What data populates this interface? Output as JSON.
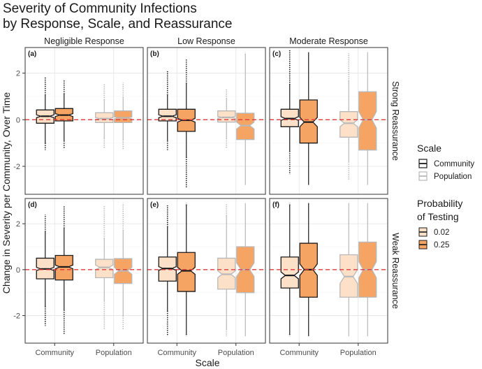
{
  "chart_data": {
    "type": "boxplot",
    "title": "Severity of Community Infections",
    "subtitle": "by Response, Scale, and Reassurance",
    "xlabel": "Scale",
    "ylabel": "Change in Severity per Community, Over Time",
    "categories": [
      "Community",
      "Population"
    ],
    "yticks": [
      "-2",
      "0",
      "2"
    ],
    "ylim": [
      -3.2,
      3.1
    ],
    "reference_line": 0,
    "column_facets": [
      "Negligible Response",
      "Low Response",
      "Moderate Response"
    ],
    "row_facets": [
      "Strong Reassurance",
      "Weak Reassurance"
    ],
    "legend": {
      "scale_title": "Scale",
      "scale_items": [
        {
          "label": "Community",
          "color": "#1a1a1a"
        },
        {
          "label": "Population",
          "color": "#b8b8b8"
        }
      ],
      "prob_title_line1": "Probability",
      "prob_title_line2": "of Testing",
      "prob_items": [
        {
          "label": "0.02",
          "color": "#fde0c8"
        },
        {
          "label": "0.25",
          "color": "#f6a464"
        }
      ]
    },
    "panels": [
      {
        "label": "(a)",
        "boxes": [
          {
            "scale": "Community",
            "prob": "0.02",
            "q1": -0.15,
            "median": 0.15,
            "q3": 0.42,
            "notch": 0.06,
            "wlo": -1.0,
            "whi": 1.05,
            "olo": -1.3,
            "ohi": 1.85
          },
          {
            "scale": "Community",
            "prob": "0.25",
            "q1": -0.05,
            "median": 0.2,
            "q3": 0.48,
            "notch": 0.06,
            "wlo": -0.9,
            "whi": 1.1,
            "olo": -1.25,
            "ohi": 1.7
          },
          {
            "scale": "Population",
            "prob": "0.02",
            "q1": -0.12,
            "median": 0.05,
            "q3": 0.3,
            "notch": 0.04,
            "wlo": -0.8,
            "whi": 0.85,
            "olo": -1.25,
            "ohi": 1.55
          },
          {
            "scale": "Population",
            "prob": "0.25",
            "q1": -0.12,
            "median": 0.08,
            "q3": 0.38,
            "notch": 0.04,
            "wlo": -0.85,
            "whi": 0.95,
            "olo": -1.3,
            "ohi": 1.6
          }
        ]
      },
      {
        "label": "(b)",
        "boxes": [
          {
            "scale": "Community",
            "prob": "0.02",
            "q1": -0.05,
            "median": 0.15,
            "q3": 0.45,
            "notch": 0.06,
            "wlo": -0.9,
            "whi": 1.05,
            "olo": -1.3,
            "ohi": 2.1
          },
          {
            "scale": "Community",
            "prob": "0.25",
            "q1": -0.5,
            "median": -0.02,
            "q3": 0.45,
            "notch": 0.08,
            "wlo": -1.6,
            "whi": 1.55,
            "olo": -2.9,
            "ohi": 2.6
          },
          {
            "scale": "Population",
            "prob": "0.02",
            "q1": -0.1,
            "median": 0.1,
            "q3": 0.38,
            "notch": 0.04,
            "wlo": -0.8,
            "whi": 0.9,
            "olo": -1.2,
            "ohi": 1.3
          },
          {
            "scale": "Population",
            "prob": "0.25",
            "q1": -0.85,
            "median": -0.25,
            "q3": 0.28,
            "notch": 0.15,
            "wlo": -2.8,
            "whi": 2.8,
            "olo": -2.8,
            "ohi": 2.9
          }
        ]
      },
      {
        "label": "(c)",
        "boxes": [
          {
            "scale": "Community",
            "prob": "0.02",
            "q1": -0.3,
            "median": 0.05,
            "q3": 0.45,
            "notch": 0.08,
            "wlo": -1.35,
            "whi": 1.5,
            "olo": -2.35,
            "ohi": 3.0
          },
          {
            "scale": "Community",
            "prob": "0.25",
            "q1": -1.0,
            "median": -0.1,
            "q3": 0.85,
            "notch": 0.2,
            "wlo": -2.8,
            "whi": 2.9,
            "olo": -2.8,
            "ohi": 2.9
          },
          {
            "scale": "Population",
            "prob": "0.02",
            "q1": -0.75,
            "median": -0.15,
            "q3": 0.35,
            "notch": 0.15,
            "wlo": -1.8,
            "whi": 1.65,
            "olo": -2.6,
            "ohi": 2.85
          },
          {
            "scale": "Population",
            "prob": "0.25",
            "q1": -1.3,
            "median": 0.0,
            "q3": 1.2,
            "notch": 0.35,
            "wlo": -2.8,
            "whi": 2.9,
            "olo": -2.8,
            "ohi": 2.9
          }
        ]
      },
      {
        "label": "(d)",
        "boxes": [
          {
            "scale": "Community",
            "prob": "0.02",
            "q1": -0.4,
            "median": 0.03,
            "q3": 0.5,
            "notch": 0.07,
            "wlo": -1.6,
            "whi": 1.65,
            "olo": -2.45,
            "ohi": 2.4
          },
          {
            "scale": "Community",
            "prob": "0.25",
            "q1": -0.45,
            "median": 0.12,
            "q3": 0.62,
            "notch": 0.08,
            "wlo": -1.75,
            "whi": 1.8,
            "olo": -2.8,
            "ohi": 2.8
          },
          {
            "scale": "Population",
            "prob": "0.02",
            "q1": -0.35,
            "median": 0.1,
            "q3": 0.45,
            "notch": 0.1,
            "wlo": -1.35,
            "whi": 1.35,
            "olo": -2.6,
            "ohi": 2.8
          },
          {
            "scale": "Population",
            "prob": "0.25",
            "q1": -0.6,
            "median": -0.05,
            "q3": 0.48,
            "notch": 0.15,
            "wlo": -2.0,
            "whi": 1.7,
            "olo": -2.6,
            "ohi": 2.9
          }
        ]
      },
      {
        "label": "(e)",
        "boxes": [
          {
            "scale": "Community",
            "prob": "0.02",
            "q1": -0.5,
            "median": 0.05,
            "q3": 0.55,
            "notch": 0.08,
            "wlo": -1.8,
            "whi": 1.85,
            "olo": -2.9,
            "ohi": 2.8
          },
          {
            "scale": "Community",
            "prob": "0.25",
            "q1": -0.95,
            "median": -0.05,
            "q3": 0.75,
            "notch": 0.15,
            "wlo": -2.8,
            "whi": 2.8,
            "olo": -2.9,
            "ohi": 2.9
          },
          {
            "scale": "Population",
            "prob": "0.02",
            "q1": -0.85,
            "median": -0.2,
            "q3": 0.5,
            "notch": 0.15,
            "wlo": -2.6,
            "whi": 2.35,
            "olo": -2.9,
            "ohi": 2.9
          },
          {
            "scale": "Population",
            "prob": "0.25",
            "q1": -1.0,
            "median": 0.0,
            "q3": 1.0,
            "notch": 0.3,
            "wlo": -2.9,
            "whi": 2.9,
            "olo": -2.9,
            "ohi": 2.9
          }
        ]
      },
      {
        "label": "(f)",
        "boxes": [
          {
            "scale": "Community",
            "prob": "0.02",
            "q1": -0.8,
            "median": -0.25,
            "q3": 0.55,
            "notch": 0.15,
            "wlo": -2.8,
            "whi": 2.8,
            "olo": -2.9,
            "ohi": 2.9
          },
          {
            "scale": "Community",
            "prob": "0.25",
            "q1": -1.2,
            "median": 0.0,
            "q3": 1.15,
            "notch": 0.25,
            "wlo": -2.9,
            "whi": 2.9,
            "olo": -2.9,
            "ohi": 2.9
          },
          {
            "scale": "Population",
            "prob": "0.02",
            "q1": -1.2,
            "median": -0.3,
            "q3": 0.65,
            "notch": 0.3,
            "wlo": -2.9,
            "whi": 2.9,
            "olo": -2.9,
            "ohi": 2.9
          },
          {
            "scale": "Population",
            "prob": "0.25",
            "q1": -1.2,
            "median": 0.0,
            "q3": 1.2,
            "notch": 0.35,
            "wlo": -2.9,
            "whi": 2.9,
            "olo": -2.9,
            "ohi": 2.9
          }
        ]
      }
    ]
  }
}
